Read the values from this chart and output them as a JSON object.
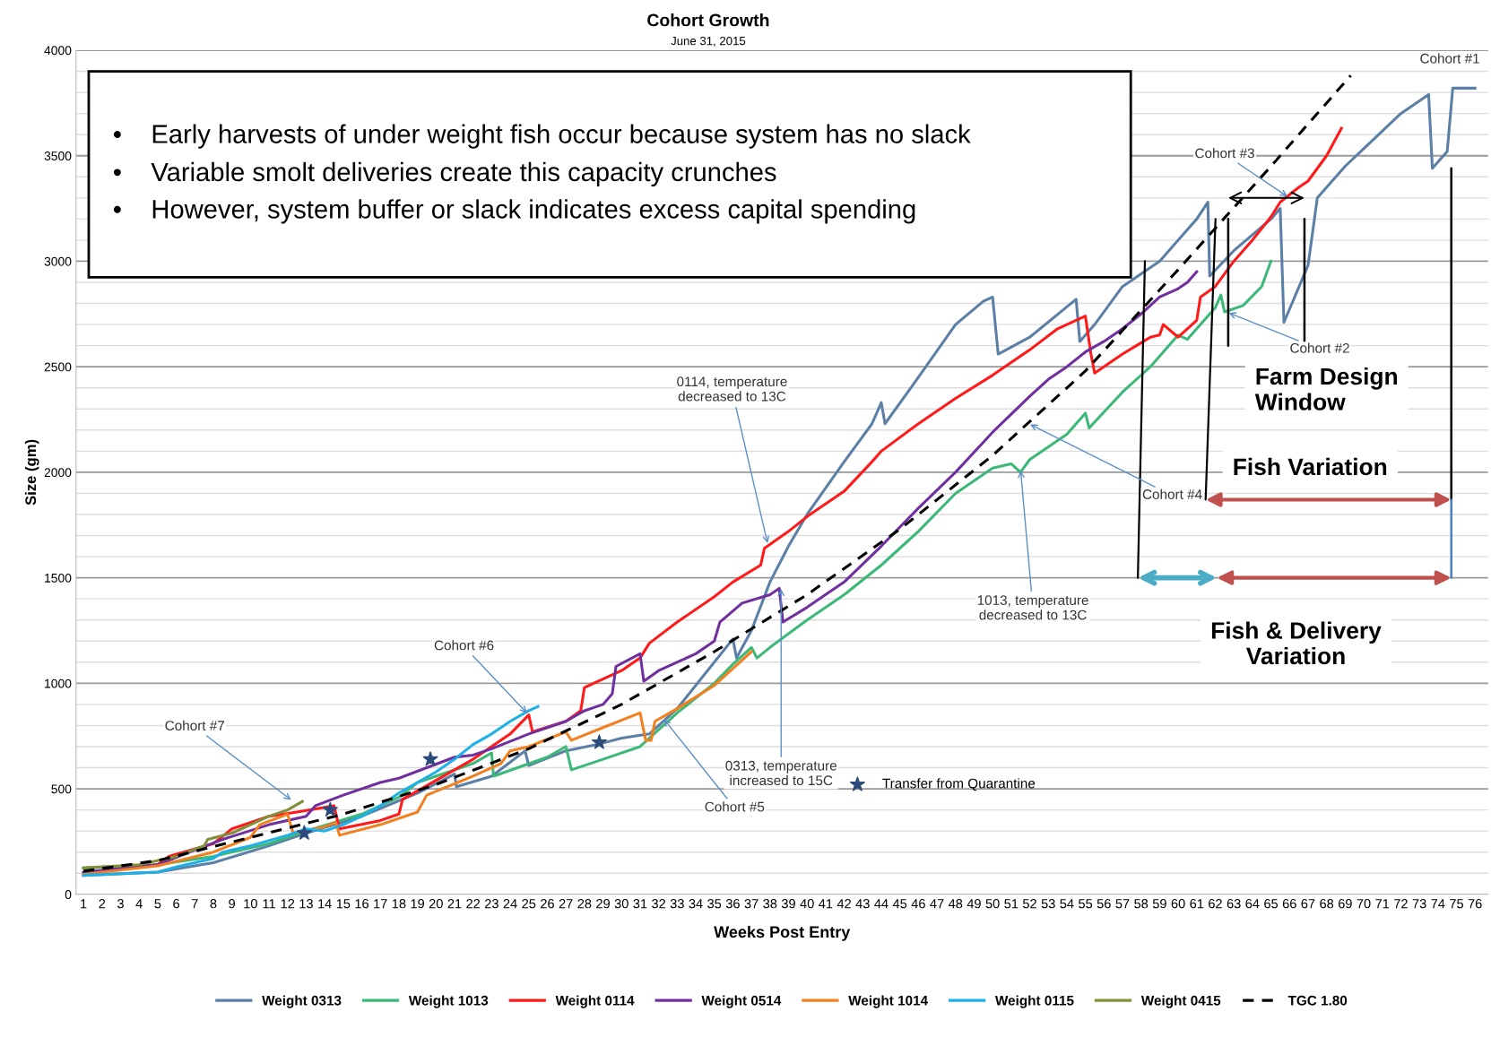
{
  "chart_data": {
    "type": "line",
    "title": "Cohort Growth",
    "subtitle": "June 31, 2015",
    "xlabel": "Weeks Post Entry",
    "ylabel": "Size (gm)",
    "xlim": [
      0.6,
      76.7
    ],
    "xticks": [
      1,
      2,
      3,
      4,
      5,
      6,
      7,
      8,
      9,
      10,
      11,
      12,
      13,
      14,
      15,
      16,
      17,
      18,
      19,
      20,
      21,
      22,
      23,
      24,
      25,
      26,
      27,
      28,
      29,
      30,
      31,
      32,
      33,
      34,
      35,
      36,
      37,
      38,
      39,
      40,
      41,
      42,
      43,
      44,
      45,
      46,
      47,
      48,
      49,
      50,
      51,
      52,
      53,
      54,
      55,
      56,
      57,
      58,
      59,
      60,
      61,
      62,
      63,
      64,
      65,
      66,
      67,
      68,
      69,
      70,
      71,
      72,
      73,
      74,
      75,
      76
    ],
    "ylim": [
      0,
      4000
    ],
    "yticks": [
      0,
      500,
      1000,
      1500,
      2000,
      2500,
      3000,
      3500,
      4000
    ],
    "grid": "y",
    "legend": "bottom",
    "series": [
      {
        "name": "Weight 0313",
        "color": "#5b7fa6",
        "x": [
          1,
          5,
          8,
          11,
          13,
          16,
          19,
          21,
          21.1,
          23,
          24.8,
          25,
          27,
          28.7,
          30,
          31.5,
          33,
          35,
          36,
          36.2,
          37,
          38,
          39,
          40,
          42,
          43.5,
          44,
          44.2,
          46,
          48,
          49.5,
          50,
          50.3,
          52,
          54.5,
          54.7,
          55.5,
          57,
          59,
          61,
          61.6,
          61.7,
          63,
          65,
          65.5,
          65.7,
          67,
          67.5,
          69,
          72,
          73.5,
          73.7,
          74.5,
          74.8,
          76
        ],
        "values": [
          90,
          105,
          150,
          230,
          290,
          370,
          480,
          570,
          510,
          560,
          680,
          610,
          680,
          710,
          740,
          760,
          880,
          1100,
          1210,
          1120,
          1250,
          1480,
          1650,
          1800,
          2050,
          2230,
          2330,
          2230,
          2450,
          2700,
          2810,
          2830,
          2560,
          2640,
          2820,
          2620,
          2700,
          2880,
          3000,
          3200,
          3280,
          2930,
          3050,
          3200,
          3250,
          2710,
          2980,
          3300,
          3450,
          3700,
          3790,
          3440,
          3520,
          3820,
          3820
        ]
      },
      {
        "name": "Weight 1013",
        "color": "#3cb878",
        "x": [
          1,
          5,
          8,
          11,
          13,
          16,
          18,
          19,
          20,
          22,
          23,
          23.1,
          26,
          27,
          27.3,
          29,
          31,
          33,
          35,
          36,
          37,
          37.3,
          38,
          40,
          42,
          44,
          46,
          48,
          50,
          51,
          51.5,
          52,
          54,
          55,
          55.2,
          57,
          58.5,
          60,
          60.5,
          62,
          62.3,
          62.5,
          63.5,
          64.5,
          65
        ],
        "values": [
          125,
          140,
          180,
          240,
          300,
          380,
          460,
          530,
          560,
          620,
          670,
          560,
          650,
          700,
          590,
          640,
          700,
          860,
          1000,
          1090,
          1170,
          1120,
          1170,
          1300,
          1420,
          1560,
          1720,
          1900,
          2020,
          2040,
          2000,
          2060,
          2180,
          2280,
          2210,
          2380,
          2500,
          2650,
          2630,
          2780,
          2840,
          2760,
          2790,
          2880,
          3000
        ]
      },
      {
        "name": "Weight 0114",
        "color": "#ff1a1a",
        "x": [
          1,
          5,
          5.6,
          8,
          9,
          11,
          12.5,
          14.5,
          14.8,
          17,
          18,
          18.2,
          20,
          22,
          24,
          25,
          25.2,
          27,
          27.8,
          28,
          30,
          31,
          31.5,
          33,
          35,
          36,
          37.5,
          37.7,
          39,
          40,
          42,
          43.5,
          44,
          46,
          48,
          50,
          52,
          53.5,
          55,
          55.3,
          55.5,
          57,
          58.5,
          59,
          59.2,
          60,
          61,
          61.2,
          62,
          63,
          64,
          65,
          65.5,
          66.5,
          67,
          68,
          68.8
        ],
        "values": [
          100,
          140,
          180,
          240,
          310,
          370,
          390,
          420,
          310,
          350,
          380,
          450,
          540,
          640,
          760,
          850,
          770,
          820,
          870,
          980,
          1060,
          1120,
          1190,
          1290,
          1410,
          1480,
          1560,
          1640,
          1720,
          1790,
          1910,
          2050,
          2100,
          2230,
          2350,
          2460,
          2580,
          2680,
          2740,
          2560,
          2470,
          2560,
          2640,
          2650,
          2700,
          2640,
          2720,
          2830,
          2880,
          3000,
          3100,
          3210,
          3280,
          3350,
          3380,
          3500,
          3630
        ]
      },
      {
        "name": "Weight 0514",
        "color": "#7030a0",
        "x": [
          1,
          5,
          7,
          8.5,
          11,
          13,
          13.5,
          15,
          17,
          18,
          19.5,
          21,
          22,
          23,
          25,
          27,
          28,
          29,
          29.5,
          29.7,
          31,
          31.2,
          32,
          34,
          35,
          35.3,
          36.5,
          38,
          38.5,
          38.7,
          40,
          42,
          44,
          46,
          48,
          50,
          52,
          53,
          54,
          55,
          56,
          57,
          58,
          59,
          60,
          60.5,
          61
        ],
        "values": [
          105,
          140,
          210,
          260,
          330,
          370,
          420,
          470,
          530,
          550,
          600,
          650,
          660,
          690,
          760,
          820,
          870,
          900,
          950,
          1080,
          1140,
          1010,
          1060,
          1140,
          1200,
          1290,
          1380,
          1420,
          1450,
          1290,
          1360,
          1480,
          1650,
          1830,
          2000,
          2190,
          2360,
          2440,
          2500,
          2570,
          2620,
          2680,
          2750,
          2830,
          2870,
          2900,
          2950
        ]
      },
      {
        "name": "Weight 1014",
        "color": "#f08020",
        "x": [
          1,
          5,
          8,
          10,
          10.5,
          12,
          12.3,
          14,
          14.6,
          14.8,
          17,
          19,
          19.5,
          22,
          23.5,
          24,
          25,
          27,
          27.3,
          29,
          31,
          31.3,
          31.6,
          31.8,
          33,
          35,
          36,
          37
        ],
        "values": [
          95,
          135,
          200,
          270,
          330,
          380,
          290,
          320,
          340,
          280,
          330,
          390,
          470,
          560,
          620,
          680,
          700,
          770,
          730,
          790,
          860,
          730,
          730,
          820,
          880,
          990,
          1070,
          1150
        ]
      },
      {
        "name": "Weight 0115",
        "color": "#20b0e8",
        "x": [
          1,
          5,
          6,
          8,
          8.5,
          10,
          12,
          13,
          14,
          15,
          16,
          17,
          18,
          20,
          21,
          22,
          23,
          24,
          25,
          25.5
        ],
        "values": [
          90,
          105,
          130,
          170,
          200,
          230,
          280,
          310,
          300,
          330,
          370,
          420,
          480,
          580,
          640,
          710,
          760,
          820,
          870,
          890
        ]
      },
      {
        "name": "Weight 0415",
        "color": "#7f8f3a",
        "x": [
          1,
          4,
          6,
          7.5,
          7.7,
          9,
          10,
          11,
          12,
          12.8
        ],
        "values": [
          125,
          140,
          180,
          230,
          260,
          290,
          330,
          370,
          400,
          440
        ]
      },
      {
        "name": "TGC 1.80",
        "color": "#000000",
        "line_style": "dashed",
        "x": [
          1,
          5,
          10,
          15,
          20,
          25,
          30,
          35,
          40,
          45,
          50,
          55,
          60,
          65,
          69.3
        ],
        "values": [
          110,
          160,
          270,
          380,
          520,
          690,
          900,
          1150,
          1420,
          1730,
          2080,
          2480,
          2960,
          3450,
          3880
        ]
      },
      {
        "name": "Transfer from Quarantine",
        "type": "scatter",
        "marker": "star",
        "color": "#2e4a7a",
        "x": [
          12.9,
          14.3,
          19.7,
          28.8
        ],
        "values": [
          290,
          400,
          640,
          720
        ]
      }
    ],
    "annotations": [
      "•    Early harvests of under weight fish occur because system has no slack",
      "•    Variable smolt deliveries create this capacity crunches",
      "•    However, system buffer or slack indicates excess capital spending",
      "Farm Design\nWindow",
      "Fish Variation",
      "Fish & Delivery\nVariation",
      {
        "text": "Cohort #1",
        "x": 73.5,
        "y": 3790
      },
      {
        "text": "Cohort #3",
        "x": 66,
        "y": 3300
      },
      {
        "text": "Cohort #2",
        "x": 62.6,
        "y": 2760
      },
      {
        "text": "Cohort #4",
        "x": 51.9,
        "y": 2232
      },
      {
        "text": "1013, temperature\ndecreased to 13C",
        "x": 51.5,
        "y": 2020
      },
      {
        "text": "0114, temperature\ndecreased to 13C",
        "x": 37.9,
        "y": 1652
      },
      {
        "text": "0313, temperature\nincreased to 15C",
        "x": 38.6,
        "y": 1460
      },
      {
        "text": "Cohort #5",
        "x": 32.2,
        "y": 840
      },
      {
        "text": "Cohort #6",
        "x": 25,
        "y": 850
      },
      {
        "text": "Cohort #7",
        "x": 12.3,
        "y": 440
      }
    ]
  }
}
